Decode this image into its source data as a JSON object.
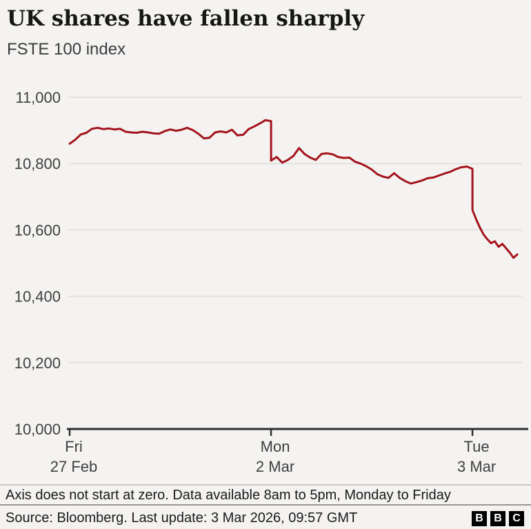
{
  "header": {
    "title": "UK shares have fallen sharply",
    "subtitle": "FSTE 100 index"
  },
  "chart_data": {
    "type": "line",
    "title": "UK shares have fallen sharply",
    "subtitle": "FSTE 100 index",
    "line_color": "#a4131c",
    "grid": "on",
    "y_axis": {
      "min": 10000,
      "max": 11000,
      "step": 200,
      "tick_labels_top_to_bottom": [
        "11,000",
        "10,800",
        "10,600",
        "10,400",
        "10,200",
        "10,000"
      ]
    },
    "x_axis": {
      "total_hours": 20,
      "ticks": [
        {
          "line1": "Fri",
          "line2": "27 Feb",
          "hour": 0
        },
        {
          "line1": "Mon",
          "line2": "2 Mar",
          "hour": 9
        },
        {
          "line1": "Tue",
          "line2": "3 Mar",
          "hour": 18
        }
      ]
    },
    "series": [
      {
        "name": "FSTE 100 index",
        "segments": [
          {
            "day": "Fri 27 Feb",
            "start_hour": 0,
            "interval_min": 15,
            "values": [
              10860,
              10872,
              10888,
              10893,
              10905,
              10908,
              10904,
              10906,
              10903,
              10905,
              10896,
              10894,
              10893,
              10896,
              10894,
              10891,
              10890,
              10898,
              10903,
              10899,
              10902,
              10908,
              10901,
              10890,
              10876,
              10878,
              10894,
              10897,
              10894,
              10902,
              10885,
              10887,
              10904,
              10912,
              10921,
              10931,
              10928
            ]
          },
          {
            "day": "Mon 2 Mar",
            "start_hour": 9,
            "interval_min": 15,
            "values": [
              10809,
              10820,
              10803,
              10811,
              10823,
              10847,
              10829,
              10818,
              10811,
              10829,
              10831,
              10828,
              10820,
              10817,
              10818,
              10806,
              10800,
              10792,
              10782,
              10768,
              10761,
              10757,
              10771,
              10757,
              10747,
              10740,
              10744,
              10749,
              10756,
              10758,
              10764,
              10770,
              10775,
              10783,
              10789,
              10791,
              10784
            ]
          },
          {
            "day": "Tue 3 Mar",
            "start_hour": 18,
            "interval_min": 10,
            "values": [
              10660,
              10632,
              10607,
              10586,
              10572,
              10560,
              10566,
              10549,
              10558,
              10545,
              10532,
              10516,
              10526
            ]
          }
        ]
      }
    ]
  },
  "footnote": "Axis does not start at zero. Data available 8am to 5pm, Monday to Friday",
  "source": "Source: Bloomberg. Last update: 3 Mar 2026, 09:57 GMT",
  "logo": {
    "letters": [
      "B",
      "B",
      "C"
    ]
  }
}
